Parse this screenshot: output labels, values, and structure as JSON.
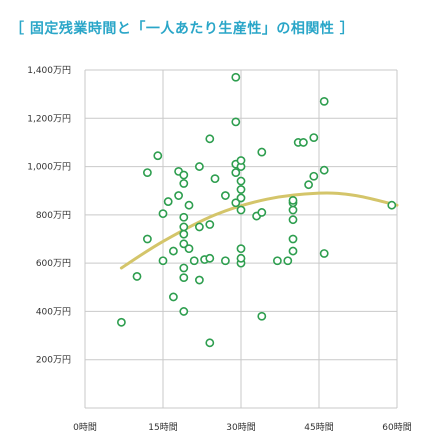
{
  "chart_data": {
    "type": "scatter",
    "title": "［ 固定残業時間と「一人あたり生産性」の相関性 ］",
    "xlabel": "",
    "ylabel": "",
    "xlim": [
      0,
      60
    ],
    "ylim": [
      0,
      1400
    ],
    "x_ticks": [
      0,
      15,
      30,
      45,
      60
    ],
    "x_tick_labels": [
      "0時間",
      "15時間",
      "30時間",
      "45時間",
      "60時間"
    ],
    "y_ticks": [
      200,
      400,
      600,
      800,
      1000,
      1200,
      1400
    ],
    "y_tick_labels": [
      "200万円",
      "400万円",
      "600万円",
      "800万円",
      "1,000万円",
      "1,200万円",
      "1,400万円"
    ],
    "grid": true,
    "colors": {
      "points": "#2e9e4f",
      "trend": "#d4c56a",
      "grid": "#c9c9c9",
      "title": "#2aa6c8"
    },
    "trend_line": {
      "type": "quadratic",
      "points": [
        [
          7,
          580
        ],
        [
          15,
          690
        ],
        [
          25,
          800
        ],
        [
          35,
          865
        ],
        [
          45,
          890
        ],
        [
          52,
          880
        ],
        [
          60,
          840
        ]
      ]
    },
    "points": [
      [
        7,
        355
      ],
      [
        10,
        545
      ],
      [
        12,
        700
      ],
      [
        12,
        975
      ],
      [
        14,
        1045
      ],
      [
        15,
        610
      ],
      [
        15,
        805
      ],
      [
        16,
        855
      ],
      [
        17,
        460
      ],
      [
        17,
        650
      ],
      [
        18,
        880
      ],
      [
        18,
        980
      ],
      [
        19,
        400
      ],
      [
        19,
        540
      ],
      [
        19,
        580
      ],
      [
        19,
        680
      ],
      [
        19,
        720
      ],
      [
        19,
        750
      ],
      [
        19,
        790
      ],
      [
        19,
        930
      ],
      [
        19,
        965
      ],
      [
        20,
        660
      ],
      [
        20,
        840
      ],
      [
        21,
        610
      ],
      [
        22,
        530
      ],
      [
        22,
        750
      ],
      [
        22,
        1000
      ],
      [
        23,
        615
      ],
      [
        24,
        270
      ],
      [
        24,
        620
      ],
      [
        24,
        760
      ],
      [
        24,
        1115
      ],
      [
        25,
        950
      ],
      [
        27,
        610
      ],
      [
        27,
        880
      ],
      [
        29,
        850
      ],
      [
        29,
        975
      ],
      [
        29,
        1010
      ],
      [
        29,
        1185
      ],
      [
        29,
        1370
      ],
      [
        30,
        600
      ],
      [
        30,
        620
      ],
      [
        30,
        660
      ],
      [
        30,
        820
      ],
      [
        30,
        870
      ],
      [
        30,
        905
      ],
      [
        30,
        940
      ],
      [
        30,
        1000
      ],
      [
        30,
        1025
      ],
      [
        33,
        795
      ],
      [
        34,
        380
      ],
      [
        34,
        810
      ],
      [
        34,
        1060
      ],
      [
        37,
        610
      ],
      [
        39,
        610
      ],
      [
        40,
        650
      ],
      [
        40,
        700
      ],
      [
        40,
        780
      ],
      [
        40,
        820
      ],
      [
        40,
        850
      ],
      [
        40,
        860
      ],
      [
        41,
        1100
      ],
      [
        42,
        1100
      ],
      [
        43,
        925
      ],
      [
        44,
        960
      ],
      [
        44,
        1120
      ],
      [
        46,
        640
      ],
      [
        46,
        985
      ],
      [
        46,
        1270
      ],
      [
        59,
        840
      ]
    ]
  }
}
